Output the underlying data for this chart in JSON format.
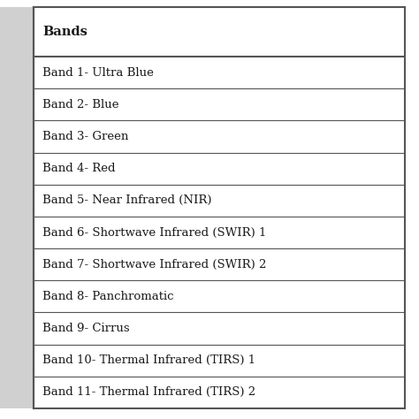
{
  "header": "Bands",
  "rows": [
    "Band 1- Ultra Blue",
    "Band 2- Blue",
    "Band 3- Green",
    "Band 4- Red",
    "Band 5- Near Infrared (NIR)",
    "Band 6- Shortwave Infrared (SWIR) 1",
    "Band 7- Shortwave Infrared (SWIR) 2",
    "Band 8- Panchromatic",
    "Band 9- Cirrus",
    "Band 10- Thermal Infrared (TIRS) 1",
    "Band 11- Thermal Infrared (TIRS) 2"
  ],
  "bg_color": "#ffffff",
  "left_col_color": "#e8e8e8",
  "line_color": "#555555",
  "text_color": "#1a1a1a",
  "header_fontsize": 10.5,
  "row_fontsize": 9.5,
  "fig_width": 4.74,
  "fig_height": 4.74,
  "dpi": 100
}
